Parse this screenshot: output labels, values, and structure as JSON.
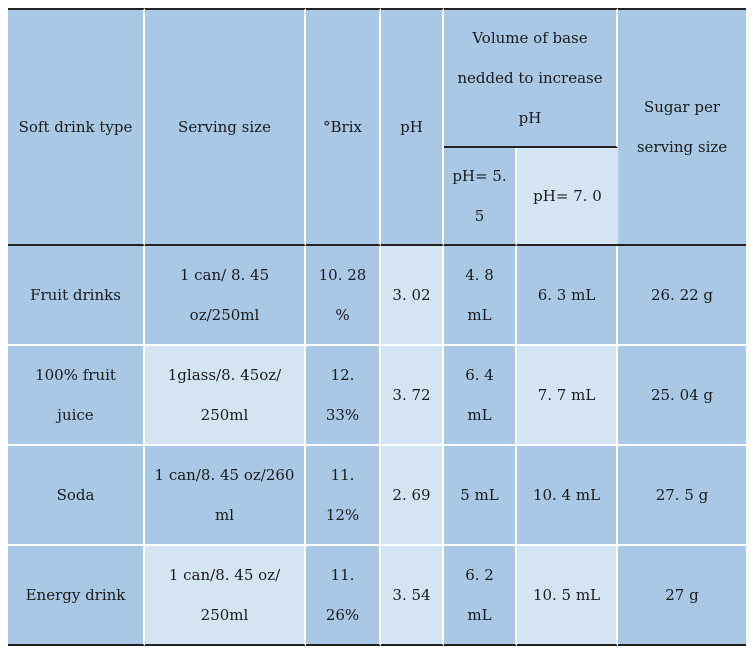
{
  "table": {
    "headers": {
      "soft_drink_type": "Soft drink type",
      "serving_size": "Serving size",
      "brix": "°Brix",
      "ph": "pH",
      "volume_base": "Volume of base nedded to increase pH",
      "ph55": "pH= 5. 5",
      "ph70": "pH= 7. 0",
      "sugar": "Sugar per serving size"
    },
    "rows": [
      {
        "type": "Fruit drinks",
        "serving": "1 can/ 8. 45 oz/250ml",
        "brix": "10. 28 %",
        "ph": "3. 02",
        "v55": "4. 8 mL",
        "v70": "6. 3 mL",
        "sugar": "26. 22 g"
      },
      {
        "type": "100% fruit juice",
        "serving": "1glass/8. 45oz/ 250ml",
        "brix": "12. 33%",
        "ph": "3. 72",
        "v55": "6. 4 mL",
        "v70": "7. 7 mL",
        "sugar": "25. 04 g"
      },
      {
        "type": "Soda",
        "serving": "1 can/8. 45 oz/260 ml",
        "brix": "11. 12%",
        "ph": "2. 69",
        "v55": "5 mL",
        "v70": "10. 4 mL",
        "sugar": "27. 5 g"
      },
      {
        "type": "Energy drink",
        "serving": "1 can/8. 45 oz/ 250ml",
        "brix": "11. 26%",
        "ph": "3. 54",
        "v55": "6. 2 mL",
        "v70": "10. 5 mL",
        "sugar": "27 g"
      }
    ]
  },
  "colors": {
    "cell_medium": "#a8c8e6",
    "cell_light": "#d5e4f3",
    "rule": "#222222"
  }
}
